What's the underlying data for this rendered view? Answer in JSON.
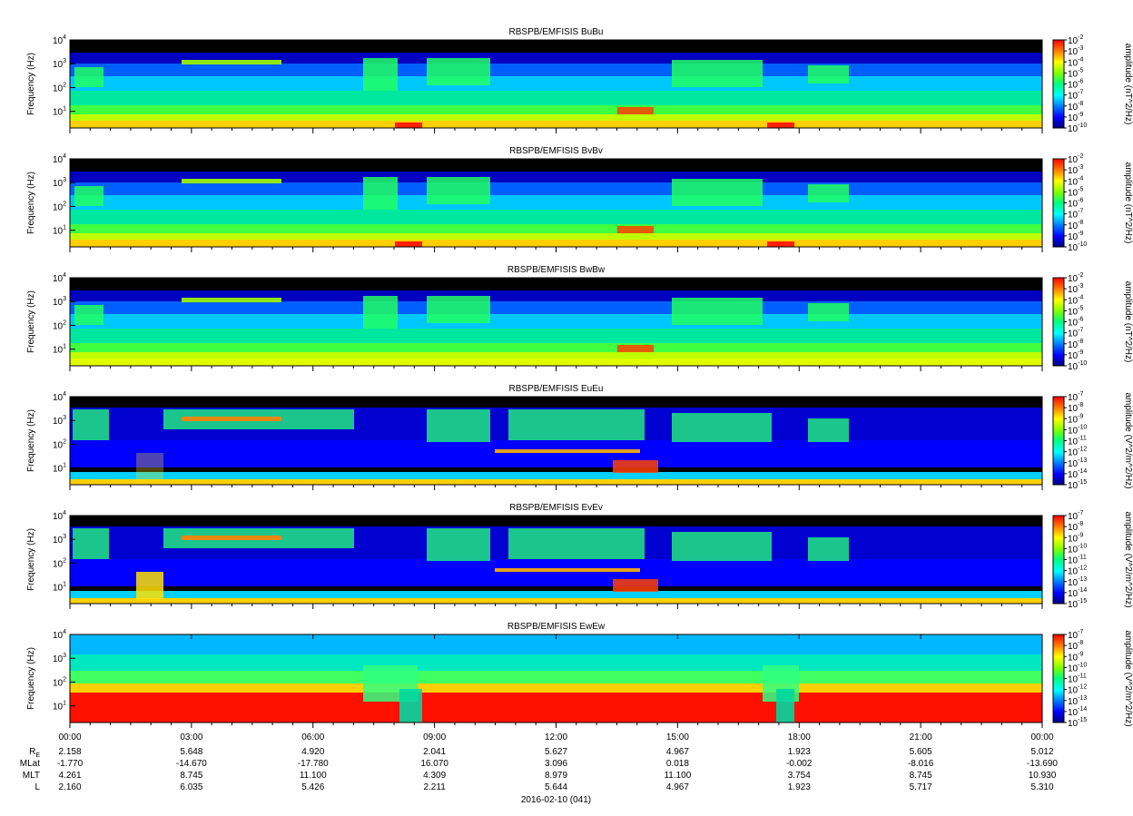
{
  "colors": {
    "background": "#000000",
    "colormap": [
      "#000080",
      "#0000ff",
      "#0080ff",
      "#00ffff",
      "#00ff80",
      "#80ff00",
      "#ffff00",
      "#ff8000",
      "#ff0000"
    ]
  },
  "chart_data": [
    {
      "type": "heatmap",
      "title": "RBSPB/EMFISIS  BuBu",
      "ylabel": "Frequency (Hz)",
      "yscale": "log",
      "ylim": [
        2,
        10000
      ],
      "ytick_exponents": [
        "4",
        "3",
        "2",
        "1"
      ],
      "colorbar_label": "amplitude (nT^2/Hz)",
      "clim_exponents": [
        "-2",
        "-3",
        "-4",
        "-5",
        "-6",
        "-7",
        "-8",
        "-9",
        "-10"
      ],
      "show_x_ticklabels": false
    },
    {
      "type": "heatmap",
      "title": "RBSPB/EMFISIS  BvBv",
      "ylabel": "Frequency (Hz)",
      "yscale": "log",
      "ylim": [
        2,
        10000
      ],
      "ytick_exponents": [
        "4",
        "3",
        "2",
        "1"
      ],
      "colorbar_label": "amplitude (nT^2/Hz)",
      "clim_exponents": [
        "-2",
        "-3",
        "-4",
        "-5",
        "-6",
        "-7",
        "-8",
        "-9",
        "-10"
      ],
      "show_x_ticklabels": false
    },
    {
      "type": "heatmap",
      "title": "RBSPB/EMFISIS  BwBw",
      "ylabel": "Frequency (Hz)",
      "yscale": "log",
      "ylim": [
        2,
        10000
      ],
      "ytick_exponents": [
        "4",
        "3",
        "2",
        "1"
      ],
      "colorbar_label": "amplitude (nT^2/Hz)",
      "clim_exponents": [
        "-2",
        "-3",
        "-4",
        "-5",
        "-6",
        "-7",
        "-8",
        "-9",
        "-10"
      ],
      "show_x_ticklabels": false
    },
    {
      "type": "heatmap",
      "title": "RBSPB/EMFISIS  EuEu",
      "ylabel": "Frequency (Hz)",
      "yscale": "log",
      "ylim": [
        2,
        10000
      ],
      "ytick_exponents": [
        "4",
        "3",
        "2",
        "1"
      ],
      "colorbar_label": "amplitude (V^2/m^2/Hz)",
      "clim_exponents": [
        "-7",
        "-8",
        "-9",
        "-10",
        "-11",
        "-12",
        "-13",
        "-14",
        "-15"
      ],
      "show_x_ticklabels": false
    },
    {
      "type": "heatmap",
      "title": "RBSPB/EMFISIS  EvEv",
      "ylabel": "Frequency (Hz)",
      "yscale": "log",
      "ylim": [
        2,
        10000
      ],
      "ytick_exponents": [
        "4",
        "3",
        "2",
        "1"
      ],
      "colorbar_label": "amplitude (V^2/m^2/Hz)",
      "clim_exponents": [
        "-7",
        "-8",
        "-9",
        "-10",
        "-11",
        "-12",
        "-13",
        "-14",
        "-15"
      ],
      "show_x_ticklabels": false
    },
    {
      "type": "heatmap",
      "title": "RBSPB/EMFISIS  EwEw",
      "ylabel": "Frequency (Hz)",
      "yscale": "log",
      "ylim": [
        2,
        10000
      ],
      "ytick_exponents": [
        "4",
        "3",
        "2",
        "1"
      ],
      "colorbar_label": "amplitude (V^2/m^2/Hz)",
      "clim_exponents": [
        "-7",
        "-8",
        "-9",
        "-10",
        "-11",
        "-12",
        "-13",
        "-14",
        "-15"
      ],
      "show_x_ticklabels": true
    }
  ],
  "x_axis": {
    "ticks": [
      "00:00",
      "03:00",
      "06:00",
      "09:00",
      "12:00",
      "15:00",
      "18:00",
      "21:00",
      "00:00"
    ],
    "date_label": "2016-02-10 (041)"
  },
  "ephemeris": {
    "rows": [
      {
        "label": "R",
        "label_sub": "E",
        "values": [
          "2.158",
          "5.648",
          "4.920",
          "2.041",
          "5.627",
          "4.967",
          "1.923",
          "5.605",
          "5.012"
        ]
      },
      {
        "label": "MLat",
        "label_sub": "",
        "values": [
          "-1.770",
          "-14.670",
          "-17.780",
          "16.070",
          "3.096",
          "0.018",
          "-0.002",
          "-8.016",
          "-13.690"
        ]
      },
      {
        "label": "MLT",
        "label_sub": "",
        "values": [
          "4.261",
          "8.745",
          "11.100",
          "4.309",
          "8.979",
          "11.100",
          "3.754",
          "8.745",
          "10.930"
        ]
      },
      {
        "label": "L",
        "label_sub": "",
        "values": [
          "2.160",
          "6.035",
          "5.426",
          "2.211",
          "5.644",
          "4.967",
          "1.923",
          "5.717",
          "5.310"
        ]
      }
    ]
  }
}
